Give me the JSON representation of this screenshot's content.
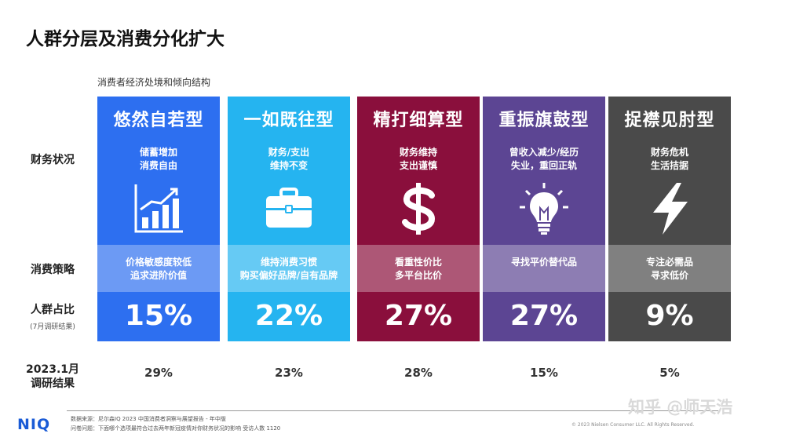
{
  "title": "人群分层及消费分化扩大",
  "subtitle": "消费者经济处境和倾向结构",
  "row_labels": {
    "finance": "财务状况",
    "strategy": "消费策略",
    "share": "人群占比",
    "share_note": "(7月调研结果)",
    "survey_line1": "2023.1月",
    "survey_line2": "调研结果"
  },
  "segments": [
    {
      "name": "悠然自若型",
      "finance_1": "储蓄增加",
      "finance_2": "消费自由",
      "strategy_1": "价格敏感度较低",
      "strategy_2": "追求进阶价值",
      "share": "15%",
      "jan": "29%",
      "color": "#2d6ff0",
      "icon": "bar-chart-icon"
    },
    {
      "name": "一如既往型",
      "finance_1": "财务/支出",
      "finance_2": "维持不变",
      "strategy_1": "维持消费习惯",
      "strategy_2": "购买偏好品牌/自有品牌",
      "share": "22%",
      "jan": "23%",
      "color": "#25b4f0",
      "icon": "briefcase-icon"
    },
    {
      "name": "精打细算型",
      "finance_1": "财务维持",
      "finance_2": "支出谨慎",
      "strategy_1": "看重性价比",
      "strategy_2": "多平台比价",
      "share": "27%",
      "jan": "28%",
      "color": "#8a0f3c",
      "icon": "dollar-icon"
    },
    {
      "name": "重振旗鼓型",
      "finance_1": "曾收入减少/经历",
      "finance_2": "失业，重回正轨",
      "strategy_1": "寻找平价替代品",
      "strategy_2": "",
      "share": "27%",
      "jan": "15%",
      "color": "#5c4593",
      "icon": "lightbulb-icon"
    },
    {
      "name": "捉襟见肘型",
      "finance_1": "财务危机",
      "finance_2": "生活拮据",
      "strategy_1": "专注必需品",
      "strategy_2": "寻求低价",
      "share": "9%",
      "jan": "5%",
      "color": "#4a4a4a",
      "icon": "lightning-icon"
    }
  ],
  "footer": {
    "logo": "NIQ",
    "source": "数据来源：尼尔森IQ 2023 中国消费者洞察与展望报告 - 年中版",
    "question": "问卷问题：下面哪个选项最符合过去两年新冠疫情对你财务状况的影响 受访人数 1120",
    "copyright": "© 2023  Nielsen Consumer LLC. All Rights Reserved.",
    "watermark": "知乎 @师天浩"
  }
}
